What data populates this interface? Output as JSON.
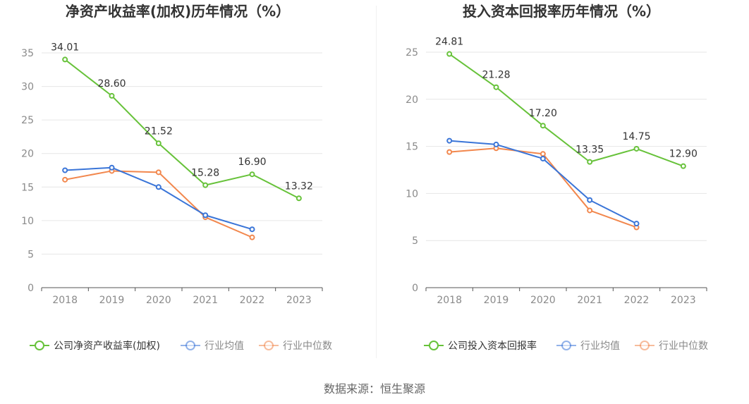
{
  "source": "数据来源：恒生聚源",
  "colors": {
    "company": "#67c23a",
    "avg": "#3a75d8",
    "median": "#f2874d",
    "grid": "#e6e6e6",
    "axis": "#555555"
  },
  "chart_data": [
    {
      "type": "line",
      "title": "净资产收益率(加权)历年情况（%）",
      "categories": [
        "2018",
        "2019",
        "2020",
        "2021",
        "2022",
        "2023"
      ],
      "ylim": [
        0,
        35
      ],
      "yticks": [
        0,
        5,
        10,
        15,
        20,
        25,
        30,
        35
      ],
      "grid": true,
      "legend_position": "bottom",
      "series": [
        {
          "name": "公司净资产收益率(加权)",
          "values": [
            34.01,
            28.6,
            21.52,
            15.28,
            16.9,
            13.32
          ],
          "labels": [
            "34.01",
            "28.60",
            "21.52",
            "15.28",
            "16.90",
            "13.32"
          ]
        },
        {
          "name": "行业均值",
          "values": [
            17.5,
            17.9,
            15.0,
            10.8,
            8.7,
            null
          ]
        },
        {
          "name": "行业中位数",
          "values": [
            16.1,
            17.4,
            17.2,
            10.5,
            7.5,
            null
          ]
        }
      ]
    },
    {
      "type": "line",
      "title": "投入资本回报率历年情况（%）",
      "categories": [
        "2018",
        "2019",
        "2020",
        "2021",
        "2022",
        "2023"
      ],
      "ylim": [
        0,
        25
      ],
      "yticks": [
        0,
        5,
        10,
        15,
        20,
        25
      ],
      "grid": true,
      "legend_position": "bottom",
      "series": [
        {
          "name": "公司投入资本回报率",
          "values": [
            24.81,
            21.28,
            17.2,
            13.35,
            14.75,
            12.9
          ],
          "labels": [
            "24.81",
            "21.28",
            "17.20",
            "13.35",
            "14.75",
            "12.90"
          ]
        },
        {
          "name": "行业均值",
          "values": [
            15.6,
            15.2,
            13.7,
            9.3,
            6.8,
            null
          ]
        },
        {
          "name": "行业中位数",
          "values": [
            14.4,
            14.8,
            14.2,
            8.2,
            6.4,
            null
          ]
        }
      ]
    }
  ]
}
